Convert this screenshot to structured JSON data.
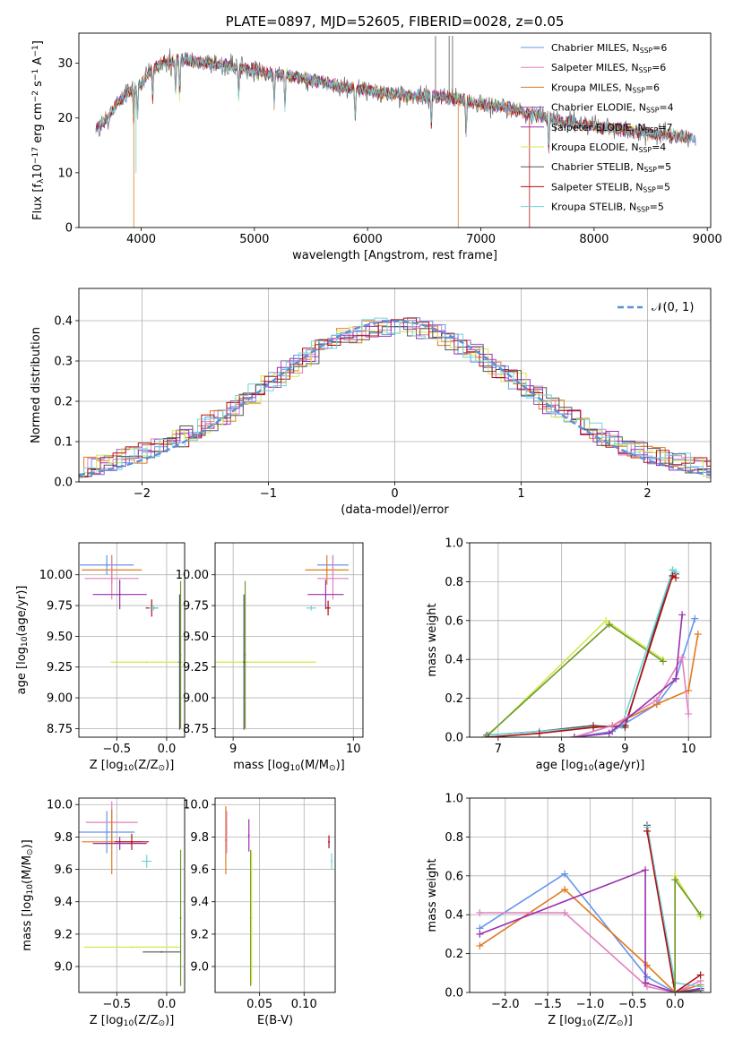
{
  "colors": {
    "chabrier_miles": "#6495ed",
    "salpeter_miles": "#e37fbe",
    "kroupa_miles": "#e07a1f",
    "chabrier_elodie": "#9b59b6",
    "salpeter_elodie": "#9b2fae",
    "kroupa_elodie": "#d4e84a",
    "chabrier_stelib": "#555555",
    "salpeter_stelib": "#b01010",
    "kroupa_stelib": "#70d4dc",
    "gaussian": "#5b8fd8",
    "olive": "#6a9a2a",
    "spine": "#000000",
    "grid": "#b0b0b0"
  },
  "chart_data": [
    {
      "type": "line",
      "id": "spectrum",
      "title": "PLATE=0897, MJD=52605, FIBERID=0028, z=0.05",
      "xlabel": "wavelength [Angstrom, rest frame]",
      "ylabel": "Flux [f",
      "ylabel_sub": "λ",
      "ylabel_rest": "10",
      "ylabel_exp1": "−17",
      "ylabel_mid": " erg cm",
      "ylabel_exp2": "−2",
      "ylabel_mid2": " s",
      "ylabel_exp3": "−1",
      "ylabel_mid3": " A",
      "ylabel_exp4": "−1",
      "ylabel_end": "]",
      "xlim": [
        3450,
        9030
      ],
      "ylim": [
        0,
        35.5
      ],
      "xticks": [
        "4000",
        "5000",
        "6000",
        "7000",
        "8000",
        "9000"
      ],
      "xtick_values": [
        4000,
        5000,
        6000,
        7000,
        8000,
        9000
      ],
      "yticks": [
        "0",
        "10",
        "20",
        "30"
      ],
      "ytick_values": [
        0,
        10,
        20,
        30
      ],
      "grid": false,
      "legend_position": "upper right",
      "continuum": [
        [
          3600,
          18
        ],
        [
          3700,
          20
        ],
        [
          3800,
          23
        ],
        [
          3900,
          25
        ],
        [
          4000,
          26
        ],
        [
          4100,
          29
        ],
        [
          4200,
          30
        ],
        [
          4400,
          30.5
        ],
        [
          4600,
          30
        ],
        [
          4800,
          29.5
        ],
        [
          5000,
          28.5
        ],
        [
          5200,
          28
        ],
        [
          5400,
          27.5
        ],
        [
          5600,
          26.5
        ],
        [
          5800,
          25.5
        ],
        [
          6000,
          25
        ],
        [
          6200,
          24.3
        ],
        [
          6400,
          24
        ],
        [
          6600,
          24
        ],
        [
          6800,
          23.5
        ],
        [
          7000,
          22.5
        ],
        [
          7200,
          22
        ],
        [
          7400,
          21
        ],
        [
          7600,
          20
        ],
        [
          7800,
          19
        ],
        [
          8000,
          18.5
        ],
        [
          8200,
          18
        ],
        [
          8400,
          17.5
        ],
        [
          8600,
          17
        ],
        [
          8800,
          16.5
        ],
        [
          8900,
          16
        ]
      ],
      "series": [
        {
          "name": "Chabrier MILES, N",
          "sub": "SSP",
          "suffix": "=6",
          "color_key": "chabrier_miles"
        },
        {
          "name": "Salpeter MILES, N",
          "sub": "SSP",
          "suffix": "=6",
          "color_key": "salpeter_miles"
        },
        {
          "name": "Kroupa MILES, N",
          "sub": "SSP",
          "suffix": "=6",
          "color_key": "kroupa_miles"
        },
        {
          "name": "Chabrier ELODIE, N",
          "sub": "SSP",
          "suffix": "=4",
          "color_key": "chabrier_elodie"
        },
        {
          "name": "Salpeter ELODIE, N",
          "sub": "SSP",
          "suffix": "=7",
          "color_key": "salpeter_elodie"
        },
        {
          "name": "Kroupa ELODIE, N",
          "sub": "SSP",
          "suffix": "=4",
          "color_key": "kroupa_elodie"
        },
        {
          "name": "Chabrier STELIB, N",
          "sub": "SSP",
          "suffix": "=5",
          "color_key": "chabrier_stelib"
        },
        {
          "name": "Salpeter STELIB, N",
          "sub": "SSP",
          "suffix": "=5",
          "color_key": "salpeter_stelib"
        },
        {
          "name": "Kroupa STELIB, N",
          "sub": "SSP",
          "suffix": "=5",
          "color_key": "kroupa_stelib"
        }
      ]
    },
    {
      "type": "line",
      "id": "residuals",
      "xlabel": "(data-model)/error",
      "ylabel": "Normed distribution",
      "xlim": [
        -2.5,
        2.5
      ],
      "ylim": [
        0,
        0.48
      ],
      "xticks": [
        "−2",
        "−1",
        "0",
        "1",
        "2"
      ],
      "xtick_values": [
        -2,
        -1,
        0,
        1,
        2
      ],
      "yticks": [
        "0.0",
        "0.1",
        "0.2",
        "0.3",
        "0.4"
      ],
      "ytick_values": [
        0,
        0.1,
        0.2,
        0.3,
        0.4
      ],
      "grid": true,
      "legend_position": "upper right",
      "legend_label": "𝒩(0, 1)",
      "bin_width": 0.1
    },
    {
      "type": "scatter",
      "id": "z_age",
      "xlabel": "Z [log",
      "xlabel_sub": "10",
      "xlabel_rest": "(Z/Z",
      "xlabel_sun": "⊙",
      "xlabel_end": ")]",
      "ylabel": "age  [log",
      "ylabel_sub": "10",
      "ylabel_rest": "(age/yr)]",
      "xlim": [
        -0.88,
        0.18
      ],
      "ylim": [
        8.68,
        10.26
      ],
      "xticks": [
        "−0.5",
        "0.0"
      ],
      "xtick_values": [
        -0.5,
        0.0
      ],
      "yticks": [
        "8.75",
        "9.00",
        "9.25",
        "9.50",
        "9.75",
        "10.00"
      ],
      "ytick_values": [
        8.75,
        9.0,
        9.25,
        9.5,
        9.75,
        10.0
      ],
      "grid": true,
      "points": [
        {
          "x": -0.6,
          "xerr": 0.27,
          "y": 10.08,
          "yerr": 0.08,
          "color_key": "chabrier_miles"
        },
        {
          "x": -0.55,
          "xerr": 0.3,
          "y": 10.04,
          "yerr": 0.12,
          "color_key": "kroupa_miles"
        },
        {
          "x": -0.55,
          "xerr": 0.27,
          "y": 9.97,
          "yerr": 0.17,
          "color_key": "salpeter_miles"
        },
        {
          "x": -0.47,
          "xerr": 0.27,
          "y": 9.84,
          "yerr": 0.12,
          "color_key": "salpeter_elodie"
        },
        {
          "x": -0.15,
          "xerr": 0.06,
          "y": 9.73,
          "yerr": 0.07,
          "color_key": "salpeter_stelib"
        },
        {
          "x": -0.13,
          "xerr": 0.05,
          "y": 9.73,
          "yerr": 0.02,
          "color_key": "kroupa_stelib"
        },
        {
          "x": -0.2,
          "xerr": 0.36,
          "y": 9.29,
          "yerr": 0.0,
          "color_key": "kroupa_elodie"
        },
        {
          "x": 0.14,
          "xerr": 0.0,
          "y": 9.35,
          "yerr": 0.6,
          "color_key": "olive"
        },
        {
          "x": 0.13,
          "xerr": 0.0,
          "y": 9.29,
          "yerr": 0.55,
          "color_key": "chabrier_stelib"
        }
      ]
    },
    {
      "type": "scatter",
      "id": "mass_age",
      "xlabel": "mass [log",
      "xlabel_sub": "10",
      "xlabel_rest": "(M/M",
      "xlabel_sun": "⊙",
      "xlabel_end": ")]",
      "xlim": [
        8.85,
        10.08
      ],
      "ylim": [
        8.68,
        10.26
      ],
      "xticks": [
        "9",
        "10"
      ],
      "xtick_values": [
        9,
        10
      ],
      "yticks": [
        "8.75",
        "9.00",
        "9.25",
        "9.50",
        "9.75",
        "10.00"
      ],
      "ytick_values": [
        8.75,
        9.0,
        9.25,
        9.5,
        9.75,
        10.0
      ],
      "grid": true,
      "points": [
        {
          "x": 9.83,
          "xerr": 0.13,
          "y": 10.08,
          "yerr": 0.08,
          "color_key": "chabrier_miles"
        },
        {
          "x": 9.78,
          "xerr": 0.18,
          "y": 10.04,
          "yerr": 0.12,
          "color_key": "kroupa_miles"
        },
        {
          "x": 9.83,
          "xerr": 0.13,
          "y": 9.97,
          "yerr": 0.17,
          "color_key": "salpeter_miles"
        },
        {
          "x": 9.77,
          "xerr": 0.15,
          "y": 9.84,
          "yerr": 0.12,
          "color_key": "salpeter_elodie"
        },
        {
          "x": 9.79,
          "xerr": 0.02,
          "y": 9.73,
          "yerr": 0.06,
          "color_key": "salpeter_stelib"
        },
        {
          "x": 9.65,
          "xerr": 0.04,
          "y": 9.73,
          "yerr": 0.02,
          "color_key": "kroupa_stelib"
        },
        {
          "x": 9.12,
          "xerr": 0.57,
          "y": 9.29,
          "yerr": 0.0,
          "color_key": "kroupa_elodie"
        },
        {
          "x": 9.1,
          "xerr": 0.0,
          "y": 9.35,
          "yerr": 0.6,
          "color_key": "olive"
        },
        {
          "x": 9.09,
          "xerr": 0.0,
          "y": 9.29,
          "yerr": 0.55,
          "color_key": "chabrier_stelib"
        }
      ]
    },
    {
      "type": "line",
      "id": "age_weight",
      "xlabel": "age  [log",
      "xlabel_sub": "10",
      "xlabel_rest": "(age/yr)]",
      "ylabel": "mass weight",
      "xlim": [
        6.55,
        10.35
      ],
      "ylim": [
        0,
        1.0
      ],
      "xticks": [
        "7",
        "8",
        "9",
        "10"
      ],
      "xtick_values": [
        7,
        8,
        9,
        10
      ],
      "yticks": [
        "0.0",
        "0.2",
        "0.4",
        "0.6",
        "0.8",
        "1.0"
      ],
      "ytick_values": [
        0,
        0.2,
        0.4,
        0.6,
        0.8,
        1.0
      ],
      "grid": true,
      "series": [
        {
          "color_key": "kroupa_elodie",
          "x": [
            6.85,
            8.7,
            9.6
          ],
          "y": [
            0.01,
            0.6,
            0.4
          ]
        },
        {
          "color_key": "olive",
          "x": [
            6.8,
            8.75,
            9.6
          ],
          "y": [
            0.0,
            0.58,
            0.39
          ]
        },
        {
          "color_key": "chabrier_stelib",
          "x": [
            6.82,
            7.65,
            8.5,
            9.0,
            9.75,
            9.8
          ],
          "y": [
            0.01,
            0.03,
            0.06,
            0.05,
            0.86,
            0.84
          ]
        },
        {
          "color_key": "kroupa_stelib",
          "x": [
            6.85,
            7.65,
            8.5,
            8.95,
            9.75,
            9.8
          ],
          "y": [
            0.01,
            0.03,
            0.05,
            0.06,
            0.86,
            0.85
          ]
        },
        {
          "color_key": "salpeter_stelib",
          "x": [
            6.85,
            7.65,
            8.5,
            9.0,
            9.75,
            9.8
          ],
          "y": [
            0.0,
            0.02,
            0.05,
            0.06,
            0.83,
            0.82
          ]
        },
        {
          "color_key": "chabrier_miles",
          "x": [
            8.2,
            8.8,
            9.5,
            9.8,
            10.1
          ],
          "y": [
            0.0,
            0.03,
            0.17,
            0.3,
            0.61
          ]
        },
        {
          "color_key": "kroupa_miles",
          "x": [
            8.2,
            8.8,
            9.5,
            10.0,
            10.15
          ],
          "y": [
            0.0,
            0.06,
            0.17,
            0.24,
            0.53
          ]
        },
        {
          "color_key": "salpeter_miles",
          "x": [
            8.2,
            8.8,
            9.5,
            9.9,
            10.0
          ],
          "y": [
            0.0,
            0.06,
            0.19,
            0.41,
            0.12
          ]
        },
        {
          "color_key": "salpeter_elodie",
          "x": [
            8.2,
            8.75,
            9.8,
            9.9
          ],
          "y": [
            0.0,
            0.02,
            0.3,
            0.63
          ]
        }
      ]
    },
    {
      "type": "scatter",
      "id": "z_mass",
      "xlabel": "Z [log",
      "xlabel_sub": "10",
      "xlabel_rest": "(Z/Z",
      "xlabel_sun": "⊙",
      "xlabel_end": ")]",
      "ylabel": "mass [log",
      "ylabel_sub": "10",
      "ylabel_rest": "(M/M",
      "ylabel_sun": "⊙",
      "ylabel_end": ")]",
      "xlim": [
        -0.88,
        0.18
      ],
      "ylim": [
        8.84,
        10.04
      ],
      "xticks": [
        "−0.5",
        "0.0"
      ],
      "xtick_values": [
        -0.5,
        0.0
      ],
      "yticks": [
        "9.0",
        "9.2",
        "9.4",
        "9.6",
        "9.8",
        "10.0"
      ],
      "ytick_values": [
        9.0,
        9.2,
        9.4,
        9.6,
        9.8,
        10.0
      ],
      "grid": true,
      "points": [
        {
          "x": -0.6,
          "xerr": 0.28,
          "y": 9.83,
          "yerr": 0.13,
          "color_key": "chabrier_miles"
        },
        {
          "x": -0.55,
          "xerr": 0.26,
          "y": 9.89,
          "yerr": 0.13,
          "color_key": "salpeter_miles"
        },
        {
          "x": -0.55,
          "xerr": 0.3,
          "y": 9.77,
          "yerr": 0.2,
          "color_key": "kroupa_miles"
        },
        {
          "x": -0.47,
          "xerr": 0.27,
          "y": 9.76,
          "yerr": 0.04,
          "color_key": "salpeter_elodie"
        },
        {
          "x": -0.35,
          "xerr": 0.17,
          "y": 9.77,
          "yerr": 0.05,
          "color_key": "salpeter_stelib"
        },
        {
          "x": -0.2,
          "xerr": 0.05,
          "y": 9.65,
          "yerr": 0.04,
          "color_key": "kroupa_stelib"
        },
        {
          "x": -0.35,
          "xerr": 0.48,
          "y": 9.12,
          "yerr": 0.0,
          "color_key": "kroupa_elodie"
        },
        {
          "x": 0.14,
          "xerr": 0.0,
          "y": 9.3,
          "yerr": 0.42,
          "color_key": "olive"
        },
        {
          "x": -0.05,
          "xerr": 0.19,
          "y": 9.09,
          "yerr": 0.0,
          "color_key": "chabrier_stelib"
        }
      ]
    },
    {
      "type": "scatter",
      "id": "ebv_mass",
      "xlabel": "E(B-V)",
      "xlim": [
        0.0,
        0.135
      ],
      "ylim": [
        8.84,
        10.04
      ],
      "xticks": [
        "0.05",
        "0.10"
      ],
      "xtick_values": [
        0.05,
        0.1
      ],
      "yticks": [
        "9.0",
        "9.2",
        "9.4",
        "9.6",
        "9.8",
        "10.0"
      ],
      "ytick_values": [
        9.0,
        9.2,
        9.4,
        9.6,
        9.8,
        10.0
      ],
      "grid": true,
      "points": [
        {
          "x": 0.012,
          "y": 9.78,
          "yerr": 0.21,
          "color_key": "kroupa_miles"
        },
        {
          "x": 0.013,
          "y": 9.83,
          "yerr": 0.13,
          "color_key": "salpeter_miles"
        },
        {
          "x": 0.038,
          "y": 9.81,
          "yerr": 0.1,
          "color_key": "salpeter_elodie"
        },
        {
          "x": 0.04,
          "y": 9.3,
          "yerr": 0.42,
          "color_key": "olive"
        },
        {
          "x": 0.041,
          "y": 9.3,
          "yerr": 0.41,
          "color_key": "kroupa_elodie"
        },
        {
          "x": 0.128,
          "y": 9.77,
          "yerr": 0.04,
          "color_key": "salpeter_stelib"
        },
        {
          "x": 0.131,
          "y": 9.65,
          "yerr": 0.05,
          "color_key": "kroupa_stelib"
        }
      ]
    },
    {
      "type": "line",
      "id": "z_weight",
      "xlabel": "Z [log",
      "xlabel_sub": "10",
      "xlabel_rest": "(Z/Z",
      "xlabel_sun": "⊙",
      "xlabel_end": ")]",
      "ylabel": "mass weight",
      "xlim": [
        -2.42,
        0.42
      ],
      "ylim": [
        0,
        1.0
      ],
      "xticks": [
        "−2.0",
        "−1.5",
        "−1.0",
        "−0.5",
        "0.0"
      ],
      "xtick_values": [
        -2.0,
        -1.5,
        -1.0,
        -0.5,
        0.0
      ],
      "yticks": [
        "0.0",
        "0.2",
        "0.4",
        "0.6",
        "0.8",
        "1.0"
      ],
      "ytick_values": [
        0,
        0.2,
        0.4,
        0.6,
        0.8,
        1.0
      ],
      "grid": true,
      "series": [
        {
          "color_key": "chabrier_miles",
          "x": [
            -2.3,
            -1.3,
            -0.33,
            0.0,
            0.3
          ],
          "y": [
            0.33,
            0.61,
            0.08,
            0.0,
            0.02
          ]
        },
        {
          "color_key": "kroupa_miles",
          "x": [
            -2.3,
            -1.3,
            -0.33,
            0.0,
            0.3
          ],
          "y": [
            0.24,
            0.53,
            0.14,
            0.0,
            0.04
          ]
        },
        {
          "color_key": "salpeter_miles",
          "x": [
            -2.3,
            -1.3,
            -0.33,
            0.0,
            0.3
          ],
          "y": [
            0.41,
            0.41,
            0.03,
            0.0,
            0.06
          ]
        },
        {
          "color_key": "salpeter_elodie",
          "x": [
            -2.3,
            -0.35,
            -0.35,
            0.0,
            0.3
          ],
          "y": [
            0.3,
            0.63,
            0.05,
            0.0,
            0.02
          ]
        },
        {
          "color_key": "chabrier_stelib",
          "x": [
            -0.33,
            0.0,
            0.3
          ],
          "y": [
            0.86,
            0.0,
            0.01
          ]
        },
        {
          "color_key": "kroupa_stelib",
          "x": [
            -0.33,
            0.0,
            0.3
          ],
          "y": [
            0.85,
            0.05,
            0.03
          ]
        },
        {
          "color_key": "salpeter_stelib",
          "x": [
            -0.33,
            0.0,
            0.3
          ],
          "y": [
            0.83,
            0.0,
            0.09
          ]
        },
        {
          "color_key": "kroupa_elodie",
          "x": [
            0.0,
            0.0,
            0.3
          ],
          "y": [
            0.0,
            0.6,
            0.39
          ]
        },
        {
          "color_key": "olive",
          "x": [
            0.0,
            0.0,
            0.3
          ],
          "y": [
            0.0,
            0.58,
            0.4
          ]
        }
      ]
    }
  ]
}
